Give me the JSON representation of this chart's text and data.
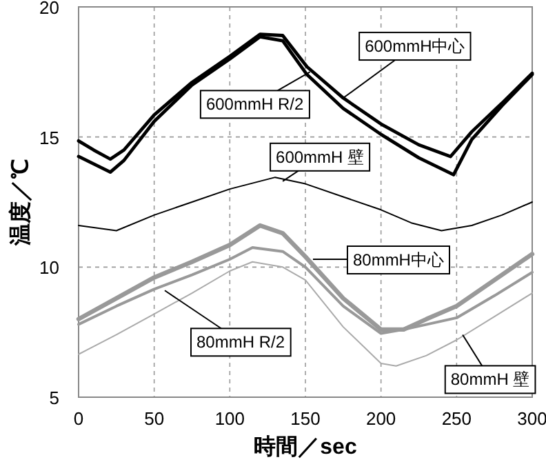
{
  "chart_data": {
    "type": "line",
    "xlabel": "時間／sec",
    "ylabel": "温度／℃",
    "xlim": [
      0,
      300
    ],
    "ylim": [
      5,
      20
    ],
    "xticks": [
      0,
      50,
      100,
      150,
      200,
      250,
      300
    ],
    "yticks": [
      5,
      10,
      15,
      20
    ],
    "grid": true,
    "marker": "none",
    "line_style": "solid",
    "series": [
      {
        "color": "#000000",
        "x": [
          0,
          10,
          21,
          30,
          50,
          75,
          100,
          120,
          135,
          151,
          175,
          200,
          225,
          246,
          260,
          280,
          300
        ],
        "values": [
          14.85,
          14.5,
          14.15,
          14.5,
          15.85,
          17.1,
          18.1,
          18.95,
          18.9,
          17.7,
          16.5,
          15.5,
          14.7,
          14.25,
          15.2,
          16.3,
          17.45
        ]
      },
      {
        "color": "#000000",
        "x": [
          0,
          21,
          30,
          50,
          75,
          100,
          120,
          135,
          151,
          175,
          200,
          225,
          248,
          260,
          280,
          300
        ],
        "values": [
          14.25,
          13.65,
          14.1,
          15.6,
          17,
          18,
          18.85,
          18.7,
          17.4,
          16.1,
          15.1,
          14.2,
          13.55,
          14.9,
          16.2,
          17.4
        ]
      },
      {
        "color": "#000000",
        "x": [
          0,
          25,
          50,
          75,
          100,
          130,
          150,
          175,
          200,
          220,
          240,
          260,
          280,
          300
        ],
        "values": [
          11.6,
          11.4,
          12.0,
          12.5,
          13.0,
          13.45,
          13.2,
          12.7,
          12.2,
          11.7,
          11.4,
          11.6,
          12.0,
          12.5
        ]
      },
      {
        "color": "#999999",
        "x": [
          0,
          25,
          50,
          75,
          100,
          120,
          135,
          150,
          175,
          200,
          215,
          230,
          250,
          275,
          300
        ],
        "values": [
          8.0,
          8.8,
          9.6,
          10.2,
          10.85,
          11.6,
          11.3,
          10.4,
          8.8,
          7.6,
          7.6,
          8.0,
          8.5,
          9.5,
          10.5
        ]
      },
      {
        "color": "#999999",
        "x": [
          0,
          25,
          50,
          75,
          100,
          115,
          135,
          150,
          175,
          200,
          215,
          250,
          275,
          300
        ],
        "values": [
          7.8,
          8.5,
          9.15,
          9.7,
          10.3,
          10.75,
          10.6,
          10.0,
          8.5,
          7.45,
          7.6,
          8.05,
          8.9,
          9.8
        ]
      },
      {
        "color": "#aaaaaa",
        "x": [
          0,
          25,
          50,
          75,
          100,
          115,
          135,
          150,
          175,
          200,
          210,
          230,
          250,
          275,
          300
        ],
        "values": [
          6.65,
          7.4,
          8.2,
          9.0,
          9.85,
          10.2,
          10.0,
          9.5,
          7.7,
          6.3,
          6.2,
          6.6,
          7.2,
          8.1,
          9.0
        ]
      }
    ],
    "annotations": [
      {
        "text": "600mmH中心",
        "x": 175,
        "y": 16.5
      },
      {
        "text": "600mmH R/2",
        "x": 153,
        "y": 17.5
      },
      {
        "text": "600mmH 壁",
        "x": 135,
        "y": 13.3
      },
      {
        "text": "80mmH中心",
        "x": 155,
        "y": 10.3
      },
      {
        "text": "80mmH R/2",
        "x": 57,
        "y": 9.1
      },
      {
        "text": "80mmH 壁",
        "x": 254,
        "y": 7.4
      }
    ]
  }
}
